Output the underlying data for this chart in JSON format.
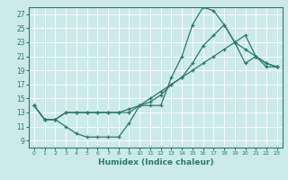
{
  "xlabel": "Humidex (Indice chaleur)",
  "bg_color": "#cceaea",
  "line_color": "#2a7a6a",
  "grid_color": "#ffffff",
  "xlim": [
    -0.5,
    23.5
  ],
  "ylim": [
    8.0,
    28.0
  ],
  "xticks": [
    0,
    1,
    2,
    3,
    4,
    5,
    6,
    7,
    8,
    9,
    10,
    11,
    12,
    13,
    14,
    15,
    16,
    17,
    18,
    19,
    20,
    21,
    22,
    23
  ],
  "yticks": [
    9,
    11,
    13,
    15,
    17,
    19,
    21,
    23,
    25,
    27
  ],
  "line1_x": [
    0,
    1,
    2,
    3,
    4,
    5,
    6,
    7,
    8,
    9,
    10,
    11,
    12,
    13,
    14,
    15,
    16,
    17,
    18,
    19,
    20,
    21,
    22,
    23
  ],
  "line1_y": [
    14,
    12,
    12,
    11,
    10,
    9.5,
    9.5,
    9.5,
    9.5,
    11.5,
    14,
    14,
    14,
    18,
    21,
    25.5,
    28,
    27.5,
    25.5,
    23,
    20,
    21,
    19.5,
    19.5
  ],
  "line2_x": [
    0,
    1,
    2,
    3,
    4,
    5,
    6,
    7,
    8,
    9,
    10,
    11,
    12,
    13,
    14,
    15,
    16,
    17,
    18,
    19,
    20,
    21,
    22,
    23
  ],
  "line2_y": [
    14,
    12,
    12,
    13,
    13,
    13,
    13,
    13,
    13,
    13.5,
    14,
    14.5,
    15.5,
    17,
    18,
    20,
    22.5,
    24,
    25.5,
    23,
    22,
    21,
    20,
    19.5
  ],
  "line3_x": [
    0,
    1,
    2,
    3,
    4,
    5,
    6,
    7,
    8,
    9,
    10,
    11,
    12,
    13,
    14,
    15,
    16,
    17,
    18,
    19,
    20,
    21,
    22,
    23
  ],
  "line3_y": [
    14,
    12,
    12,
    13,
    13,
    13,
    13,
    13,
    13,
    13,
    14,
    15,
    16,
    17,
    18,
    19,
    20,
    21,
    22,
    23,
    24,
    21,
    20,
    19.5
  ]
}
